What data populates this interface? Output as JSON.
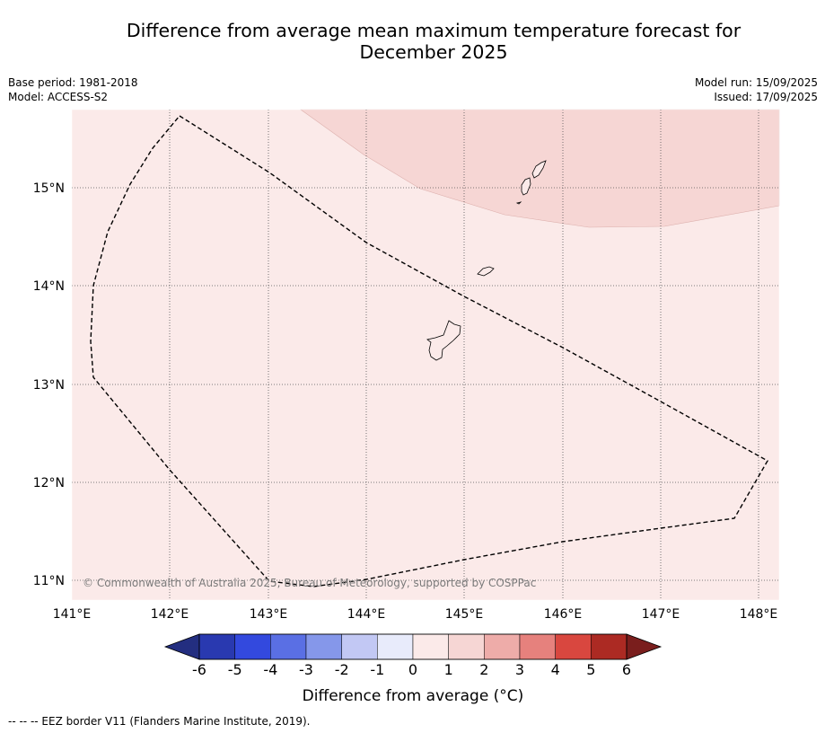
{
  "title_line1": "Difference from average mean maximum temperature forecast for",
  "title_line2": "December 2025",
  "base_period": "Base period: 1981-2018",
  "model": "Model: ACCESS-S2",
  "model_run": "Model run: 15/09/2025",
  "issued": "Issued: 17/09/2025",
  "copyright": "© Commonwealth of Australia 2025, Bureau of Meteorology, supported by COSPPac",
  "footnote": "-- -- -- EEZ border V11 (Flanders Marine Institute, 2019).",
  "lon_ticks": [
    "141°E",
    "142°E",
    "143°E",
    "144°E",
    "145°E",
    "146°E",
    "147°E",
    "148°E"
  ],
  "lat_ticks": [
    "15°N",
    "14°N",
    "13°N",
    "12°N",
    "11°N"
  ],
  "map_extent": {
    "lon_min": 141.0,
    "lon_max": 148.2,
    "lat_min": 10.8,
    "lat_max": 15.8
  },
  "anomaly_regions": [
    {
      "category": "0 to 1",
      "color": "#fbeae9"
    },
    {
      "category": "1 to 2",
      "color": "#f6d6d4"
    }
  ],
  "colorbar": {
    "label": "Difference from average ($^\\circ$C)",
    "label_display": "Difference from average (°C)",
    "ticks": [
      "-6",
      "-5",
      "-4",
      "-3",
      "-2",
      "-1",
      "0",
      "1",
      "2",
      "3",
      "4",
      "5",
      "6"
    ],
    "under_color": "#232e80",
    "over_color": "#7a1e1d",
    "colors": [
      "#2939b0",
      "#3349de",
      "#5a6fe4",
      "#8597ea",
      "#c2c8f4",
      "#e8ebfb",
      "#fbeae9",
      "#f6d6d4",
      "#eeaca9",
      "#e6817d",
      "#d9473f",
      "#ac2a23"
    ]
  },
  "colors": {
    "gridline": "#555555",
    "eez_border": "#000000"
  }
}
